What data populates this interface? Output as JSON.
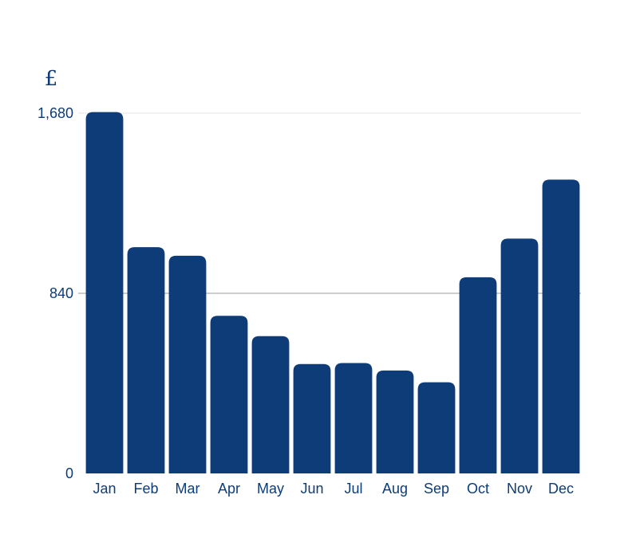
{
  "chart_data": {
    "type": "bar",
    "unit_label": "£",
    "categories": [
      "Jan",
      "Feb",
      "Mar",
      "Apr",
      "May",
      "Jun",
      "Jul",
      "Aug",
      "Sep",
      "Oct",
      "Nov",
      "Dec"
    ],
    "values": [
      1685,
      1055,
      1015,
      735,
      640,
      510,
      515,
      480,
      425,
      915,
      1095,
      1370
    ],
    "yticks": [
      0,
      840,
      1680
    ],
    "ytick_labels": [
      "0",
      "840",
      "1,680"
    ],
    "ylim": [
      0,
      1680
    ],
    "grid": true,
    "legend": "none",
    "colors": {
      "bar": "#0d3c78",
      "text": "#0d3c78",
      "gridline": "#9a9a9a",
      "top_gridline": "#e6e6e6"
    }
  }
}
